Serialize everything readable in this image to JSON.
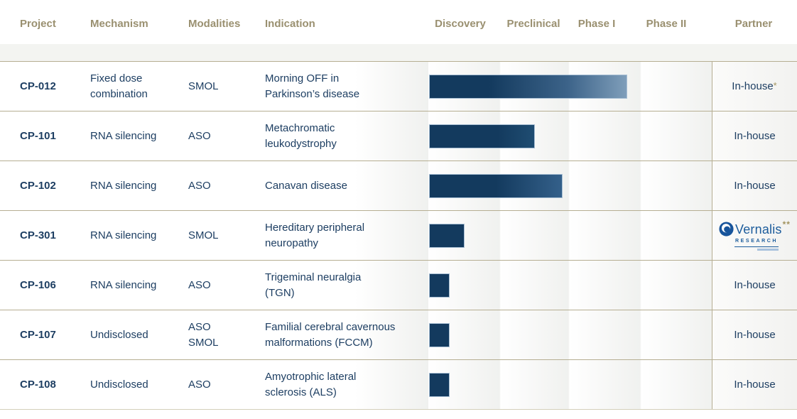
{
  "header": {
    "project": "Project",
    "mechanism": "Mechanism",
    "modalities": "Modalities",
    "indication": "Indication",
    "phases": [
      "Discovery",
      "Preclinical",
      "Phase I",
      "Phase II"
    ],
    "partner": "Partner"
  },
  "rows": [
    {
      "project": "CP-012",
      "mechanism": "Fixed dose\ncombination",
      "modalities": "SMOL",
      "indication": "Morning OFF in\nParkinson’s disease",
      "progress": 0.7,
      "fade": "strong",
      "partner": {
        "label": "In-house",
        "note": "*"
      }
    },
    {
      "project": "CP-101",
      "mechanism": "RNA silencing",
      "modalities": "ASO",
      "indication": "Metachromatic\nleukodystrophy",
      "progress": 0.374,
      "fade": "slight",
      "partner": {
        "label": "In-house",
        "note": ""
      }
    },
    {
      "project": "CP-102",
      "mechanism": "RNA silencing",
      "modalities": "ASO",
      "indication": "Canavan disease",
      "progress": 0.471,
      "fade": "medium",
      "partner": {
        "label": "In-house",
        "note": ""
      }
    },
    {
      "project": "CP-301",
      "mechanism": "RNA silencing",
      "modalities": "SMOL",
      "indication": "Hereditary peripheral\nneuropathy",
      "progress": 0.126,
      "fade": "none",
      "partner": {
        "logo": "Vernalis",
        "logo_sub": "RESEARCH",
        "note": "**"
      }
    },
    {
      "project": "CP-106",
      "mechanism": "RNA silencing",
      "modalities": "ASO",
      "indication": "Trigeminal neuralgia\n(TGN)",
      "progress": 0.073,
      "fade": "none",
      "partner": {
        "label": "In-house",
        "note": ""
      }
    },
    {
      "project": "CP-107",
      "mechanism": "Undisclosed",
      "modalities": "ASO\nSMOL",
      "indication": "Familial cerebral cavernous\nmalformations (FCCM)",
      "progress": 0.073,
      "fade": "none",
      "partner": {
        "label": "In-house",
        "note": ""
      }
    },
    {
      "project": "CP-108",
      "mechanism": "Undisclosed",
      "modalities": "ASO",
      "indication": "Amyotrophic lateral\nsclerosis (ALS)",
      "progress": 0.073,
      "fade": "none",
      "partner": {
        "label": "In-house",
        "note": ""
      }
    }
  ],
  "chart_data": {
    "type": "bar",
    "orientation": "horizontal",
    "title": "Clinical pipeline phase progression",
    "categories": [
      "CP-012",
      "CP-101",
      "CP-102",
      "CP-301",
      "CP-106",
      "CP-107",
      "CP-108"
    ],
    "x_axis_phases": [
      "Discovery",
      "Preclinical",
      "Phase I",
      "Phase II"
    ],
    "values_phase_units": [
      2.8,
      1.5,
      1.9,
      0.5,
      0.3,
      0.3,
      0.3
    ],
    "value_note": "bar length in phase-column units; 4 = end of Phase II",
    "xlim": [
      0,
      4
    ],
    "grid": "off",
    "legend": "none"
  },
  "colors": {
    "header_text": "#9a9070",
    "body_text": "#1d3e62",
    "divider": "#b6ae92",
    "divider_light": "#d4cfba",
    "band": "#f3f4f1",
    "stripe": "#f0f1ef",
    "bar_dark": "#133a5e",
    "bar_light": "#7f9eba",
    "bar_border": "#a9c0d5",
    "gold": "#a3945f",
    "vernalis_blue": "#1c5c9c"
  }
}
